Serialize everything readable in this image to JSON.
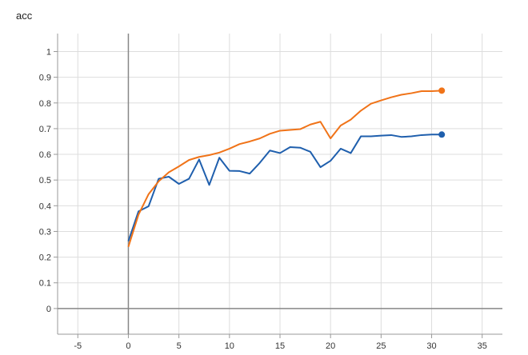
{
  "chart_data": {
    "type": "line",
    "title": "acc",
    "xlabel": "",
    "ylabel": "",
    "xlim": [
      -7,
      37
    ],
    "ylim": [
      -0.1,
      1.07
    ],
    "xticks": [
      -5,
      0,
      5,
      10,
      15,
      20,
      25,
      30,
      35
    ],
    "yticks": [
      0,
      0.1,
      0.2,
      0.3,
      0.4,
      0.5,
      0.6,
      0.7,
      0.8,
      0.9,
      1
    ],
    "grid": true,
    "legend": "none",
    "series": [
      {
        "color": "#1f5fad",
        "x": [
          0,
          1,
          2,
          3,
          4,
          5,
          6,
          7,
          8,
          9,
          10,
          11,
          12,
          13,
          14,
          15,
          16,
          17,
          18,
          19,
          20,
          21,
          22,
          23,
          24,
          25,
          26,
          27,
          28,
          29,
          30,
          31
        ],
        "values": [
          0.262,
          0.378,
          0.398,
          0.505,
          0.513,
          0.485,
          0.505,
          0.58,
          0.481,
          0.587,
          0.536,
          0.535,
          0.525,
          0.567,
          0.615,
          0.605,
          0.628,
          0.626,
          0.61,
          0.55,
          0.575,
          0.622,
          0.605,
          0.67,
          0.67,
          0.673,
          0.675,
          0.668,
          0.67,
          0.675,
          0.677,
          0.677
        ]
      },
      {
        "color": "#f07318",
        "x": [
          0,
          1,
          2,
          3,
          4,
          5,
          6,
          7,
          8,
          9,
          10,
          11,
          12,
          13,
          14,
          15,
          16,
          17,
          18,
          19,
          20,
          21,
          22,
          23,
          24,
          25,
          26,
          27,
          28,
          29,
          30,
          31
        ],
        "values": [
          0.24,
          0.365,
          0.445,
          0.495,
          0.53,
          0.553,
          0.578,
          0.59,
          0.597,
          0.607,
          0.622,
          0.64,
          0.65,
          0.662,
          0.68,
          0.692,
          0.695,
          0.698,
          0.716,
          0.727,
          0.662,
          0.712,
          0.735,
          0.77,
          0.797,
          0.81,
          0.822,
          0.832,
          0.838,
          0.846,
          0.846,
          0.848
        ]
      }
    ]
  }
}
